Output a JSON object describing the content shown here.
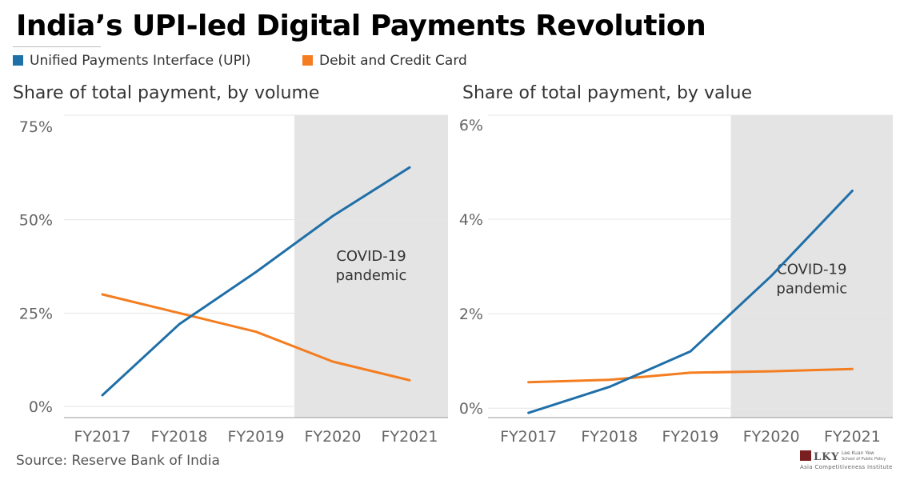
{
  "title": "India’s UPI-led Digital Payments Revolution",
  "legend": [
    {
      "label": "Unified Payments Interface (UPI)",
      "color": "#1f6fa8"
    },
    {
      "label": "Debit and Credit Card",
      "color": "#f47d20"
    }
  ],
  "source": "Source: Reserve Bank of India",
  "logo": {
    "mark": "LKY",
    "line1": "Lee Kuan Yew",
    "line2": "School of Public Policy",
    "line3": "Asia Competitiveness Institute"
  },
  "colors": {
    "upi": "#1f6fa8",
    "card": "#f47d20",
    "shade": "#e4e4e4",
    "grid": "#e6e6e6"
  },
  "chart_data": [
    {
      "type": "line",
      "title": "Share of total payment, by volume",
      "categories": [
        "FY2017",
        "FY2018",
        "FY2019",
        "FY2020",
        "FY2021"
      ],
      "y_ticks": [
        0,
        25,
        50,
        75
      ],
      "y_tick_labels": [
        "0%",
        "25%",
        "50%",
        "75%"
      ],
      "ylim": [
        -3,
        78
      ],
      "series": [
        {
          "name": "Unified Payments Interface (UPI)",
          "values": [
            3,
            22,
            36,
            51,
            64
          ]
        },
        {
          "name": "Debit and Credit Card",
          "values": [
            30,
            25,
            20,
            12,
            7
          ]
        }
      ],
      "shaded_category": "FY2020",
      "annotation": [
        "COVID-19",
        "pandemic"
      ],
      "annotation_value": 36
    },
    {
      "type": "line",
      "title": "Share of total payment, by value",
      "categories": [
        "FY2017",
        "FY2018",
        "FY2019",
        "FY2020",
        "FY2021"
      ],
      "y_ticks": [
        0,
        2,
        4,
        6
      ],
      "y_tick_labels": [
        "0%",
        "2%",
        "4%",
        "6%"
      ],
      "ylim": [
        -0.2,
        6.2
      ],
      "series": [
        {
          "name": "Unified Payments Interface (UPI)",
          "values": [
            -0.1,
            0.45,
            1.2,
            2.8,
            4.6
          ]
        },
        {
          "name": "Debit and Credit Card",
          "values": [
            0.55,
            0.6,
            0.75,
            0.78,
            0.83
          ]
        }
      ],
      "shaded_category": "FY2020",
      "annotation": [
        "COVID-19",
        "pandemic"
      ],
      "annotation_value": 2.6
    }
  ]
}
